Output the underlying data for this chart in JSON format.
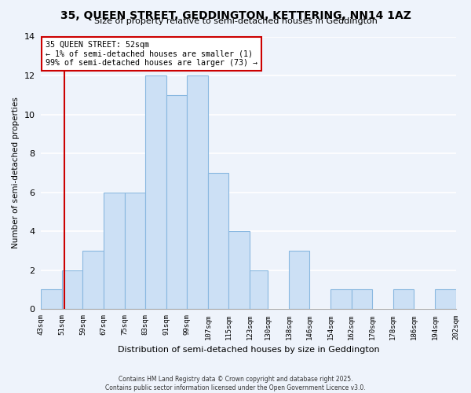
{
  "title": "35, QUEEN STREET, GEDDINGTON, KETTERING, NN14 1AZ",
  "subtitle": "Size of property relative to semi-detached houses in Geddington",
  "xlabel": "Distribution of semi-detached houses by size in Geddington",
  "ylabel": "Number of semi-detached properties",
  "bin_edges": [
    43,
    51,
    59,
    67,
    75,
    83,
    91,
    99,
    107,
    115,
    123,
    130,
    138,
    146,
    154,
    162,
    170,
    178,
    186,
    194,
    202
  ],
  "bin_labels": [
    "43sqm",
    "51sqm",
    "59sqm",
    "67sqm",
    "75sqm",
    "83sqm",
    "91sqm",
    "99sqm",
    "107sqm",
    "115sqm",
    "123sqm",
    "130sqm",
    "138sqm",
    "146sqm",
    "154sqm",
    "162sqm",
    "170sqm",
    "178sqm",
    "186sqm",
    "194sqm",
    "202sqm"
  ],
  "counts": [
    1,
    2,
    3,
    6,
    6,
    12,
    11,
    12,
    7,
    4,
    2,
    0,
    3,
    0,
    1,
    1,
    0,
    1,
    0,
    1
  ],
  "bar_color": "#cce0f5",
  "bar_edge_color": "#89b8e0",
  "background_color": "#eef3fb",
  "grid_color": "#ffffff",
  "property_value": 52,
  "property_line_color": "#cc0000",
  "annotation_title": "35 QUEEN STREET: 52sqm",
  "annotation_line1": "← 1% of semi-detached houses are smaller (1)",
  "annotation_line2": "99% of semi-detached houses are larger (73) →",
  "annotation_box_facecolor": "#ffffff",
  "annotation_box_edgecolor": "#cc0000",
  "footer_line1": "Contains HM Land Registry data © Crown copyright and database right 2025.",
  "footer_line2": "Contains public sector information licensed under the Open Government Licence v3.0.",
  "ylim": [
    0,
    14
  ],
  "yticks": [
    0,
    2,
    4,
    6,
    8,
    10,
    12,
    14
  ]
}
